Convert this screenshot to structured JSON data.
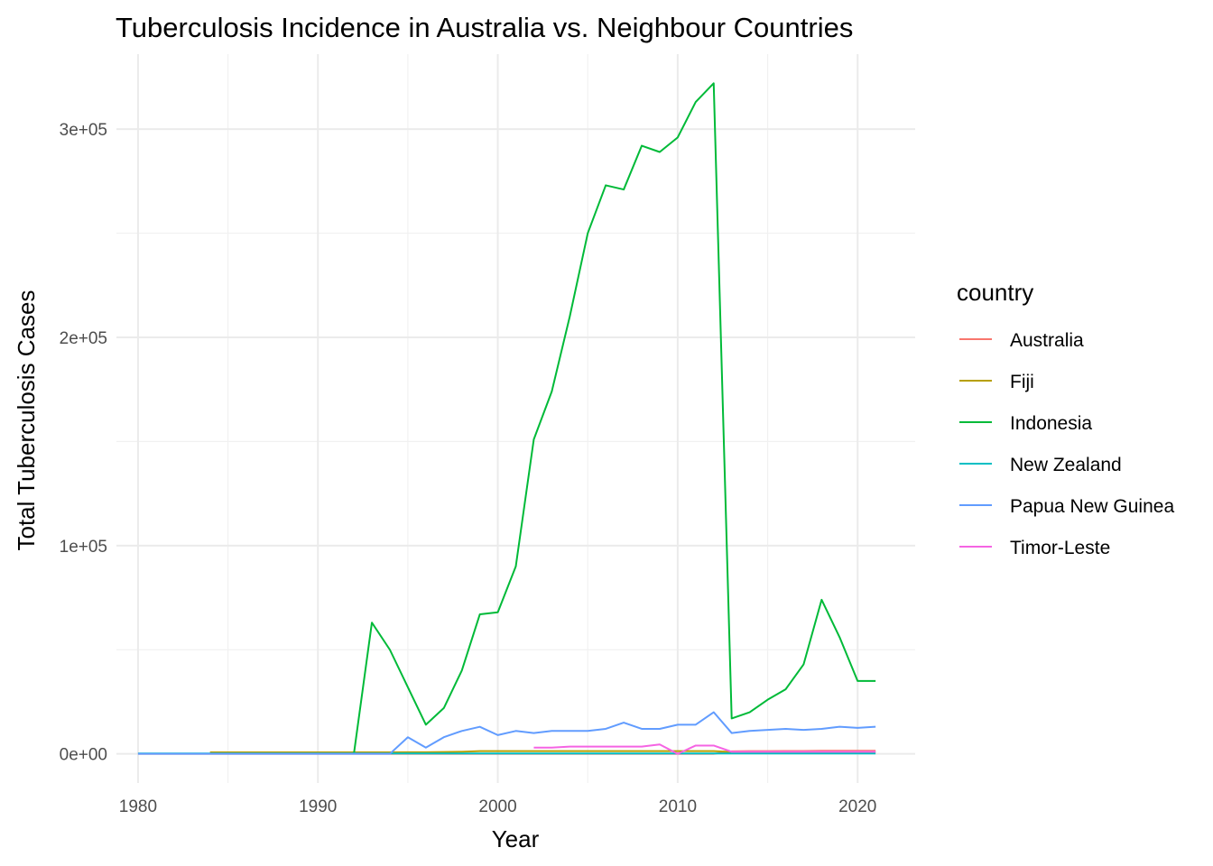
{
  "chart_data": {
    "type": "line",
    "title": "Tuberculosis Incidence in Australia vs. Neighbour Countries",
    "xlabel": "Year",
    "ylabel": "Total Tuberculosis Cases",
    "xlim": [
      1978.8,
      2023.2
    ],
    "ylim": [
      -14000,
      336000
    ],
    "x_ticks": [
      1980,
      1990,
      2000,
      2010,
      2020
    ],
    "x_tick_labels": [
      "1980",
      "1990",
      "2000",
      "2010",
      "2020"
    ],
    "y_ticks": [
      0,
      100000,
      200000,
      300000
    ],
    "y_tick_labels": [
      "0e+00",
      "1e+05",
      "2e+05",
      "3e+05"
    ],
    "y_minor_ticks": [
      50000,
      150000,
      250000
    ],
    "x_minor_ticks": [
      1985,
      1995,
      2005,
      2015
    ],
    "grid": true,
    "legend_title": "country",
    "legend_position": "right",
    "series": [
      {
        "name": "Australia",
        "color": "#F8766D",
        "x": [
          1980,
          1981,
          1982,
          1983,
          1984,
          1985,
          1986,
          1987,
          1988,
          1989,
          1990,
          1991,
          1992,
          1993,
          1994,
          1995,
          1996,
          1997,
          1998,
          1999,
          2000,
          2001,
          2002,
          2003,
          2004,
          2005,
          2006,
          2007,
          2008,
          2009,
          2010,
          2011,
          2012,
          2013,
          2014,
          2015,
          2016,
          2017,
          2018,
          2019,
          2020,
          2021
        ],
        "y": [
          0,
          0,
          0,
          0,
          0,
          0,
          0,
          0,
          0,
          0,
          0,
          0,
          0,
          0,
          0,
          0,
          0,
          0,
          0,
          0,
          0,
          0,
          0,
          0,
          0,
          0,
          0,
          0,
          0,
          0,
          0,
          0,
          0,
          1200,
          1300,
          1300,
          1400,
          1400,
          1500,
          1500,
          1500,
          1500
        ]
      },
      {
        "name": "Fiji",
        "color": "#B79F00",
        "x": [
          1984,
          1985,
          1986,
          1987,
          1988,
          1989,
          1990,
          1991,
          1992,
          1993,
          1994,
          1995,
          1996,
          1997,
          1998,
          1999,
          2000,
          2001,
          2002,
          2003,
          2004,
          2005,
          2006,
          2007,
          2008,
          2009,
          2010,
          2011,
          2012,
          2013,
          2014,
          2015,
          2016,
          2017,
          2018,
          2019,
          2020,
          2021
        ],
        "y": [
          700,
          700,
          700,
          700,
          700,
          700,
          700,
          700,
          700,
          700,
          700,
          800,
          800,
          900,
          1000,
          1300,
          1300,
          1300,
          1300,
          1300,
          1300,
          1300,
          1300,
          1300,
          1300,
          1300,
          1300,
          1300,
          1300,
          900,
          900,
          900,
          900,
          900,
          900,
          900,
          900,
          900
        ]
      },
      {
        "name": "Indonesia",
        "color": "#00BA38",
        "x": [
          1992,
          1993,
          1994,
          1995,
          1996,
          1997,
          1998,
          1999,
          2000,
          2001,
          2002,
          2003,
          2004,
          2005,
          2006,
          2007,
          2008,
          2009,
          2010,
          2011,
          2012,
          2013,
          2014,
          2015,
          2016,
          2017,
          2018,
          2019,
          2020,
          2021
        ],
        "y": [
          0,
          63000,
          50000,
          32000,
          14000,
          22000,
          40000,
          67000,
          68000,
          90000,
          151000,
          174000,
          210000,
          250000,
          273000,
          271000,
          292000,
          289000,
          296000,
          313000,
          322000,
          17000,
          20000,
          26000,
          31000,
          43000,
          74000,
          56000,
          35000,
          35000
        ]
      },
      {
        "name": "New Zealand",
        "color": "#00BFC4",
        "x": [
          1980,
          1985,
          1990,
          1995,
          2000,
          2005,
          2010,
          2015,
          2020,
          2021
        ],
        "y": [
          200,
          200,
          200,
          200,
          200,
          200,
          200,
          200,
          200,
          200
        ]
      },
      {
        "name": "Papua New Guinea",
        "color": "#619CFF",
        "x": [
          1980,
          1981,
          1982,
          1983,
          1984,
          1985,
          1986,
          1987,
          1988,
          1989,
          1990,
          1991,
          1992,
          1993,
          1994,
          1995,
          1996,
          1997,
          1998,
          1999,
          2000,
          2001,
          2002,
          2003,
          2004,
          2005,
          2006,
          2007,
          2008,
          2009,
          2010,
          2011,
          2012,
          2013,
          2014,
          2015,
          2016,
          2017,
          2018,
          2019,
          2020,
          2021
        ],
        "y": [
          0,
          0,
          0,
          0,
          0,
          0,
          0,
          0,
          0,
          0,
          0,
          0,
          0,
          0,
          0,
          8000,
          3000,
          8000,
          11000,
          13000,
          9000,
          11000,
          10000,
          11000,
          11000,
          11000,
          12000,
          15000,
          12000,
          12000,
          14000,
          14000,
          20000,
          10000,
          11000,
          11500,
          12000,
          11500,
          12000,
          13000,
          12500,
          13000
        ]
      },
      {
        "name": "Timor-Leste",
        "color": "#F564E3",
        "x": [
          2002,
          2003,
          2004,
          2005,
          2006,
          2007,
          2008,
          2009,
          2010,
          2011,
          2012,
          2013,
          2014,
          2015,
          2016,
          2017,
          2018,
          2019,
          2020,
          2021
        ],
        "y": [
          3000,
          3000,
          3500,
          3500,
          3500,
          3500,
          3500,
          4500,
          0,
          4000,
          4000,
          1000,
          1000,
          1000,
          1000,
          1000,
          1000,
          1000,
          1000,
          1000
        ]
      }
    ]
  }
}
